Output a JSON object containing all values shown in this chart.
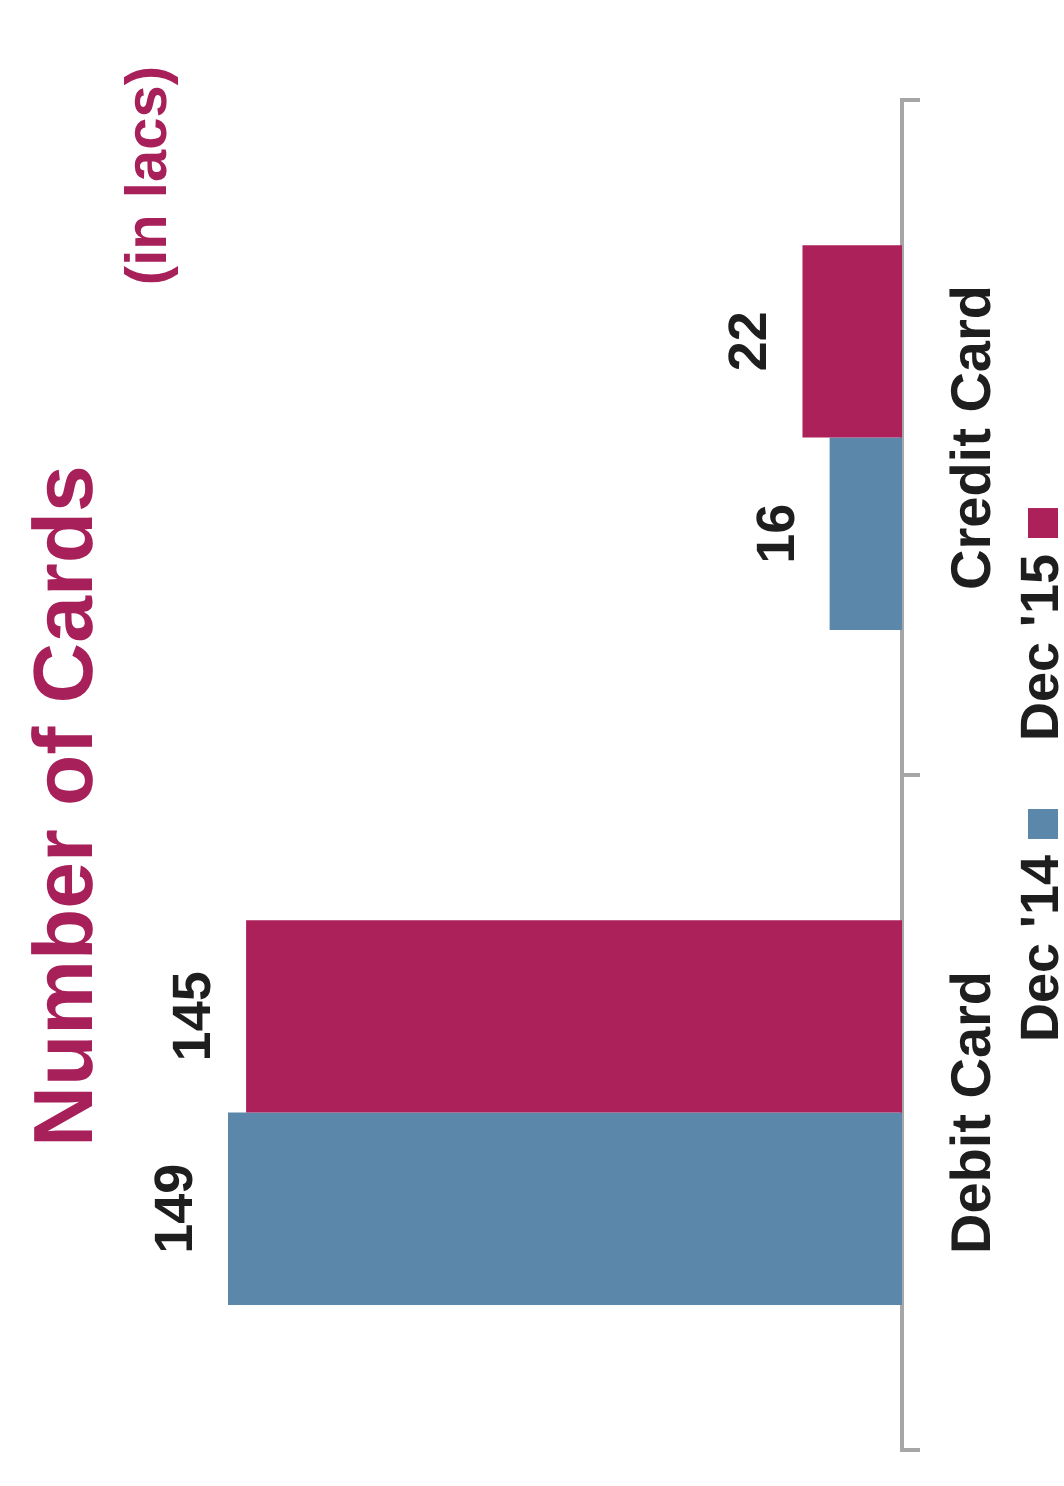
{
  "chart_data": {
    "type": "bar",
    "title": "Number of Cards",
    "subtitle": "(in lacs)",
    "orientation": "horizontal",
    "categories": [
      "Credit Card",
      "Debit Card"
    ],
    "series": [
      {
        "name": "Dec '15",
        "color": "#ad215a",
        "values": [
          22,
          145
        ]
      },
      {
        "name": "Dec '14",
        "color": "#5b87ab",
        "values": [
          16,
          149
        ]
      }
    ],
    "data_labels": true,
    "legend": "right"
  }
}
